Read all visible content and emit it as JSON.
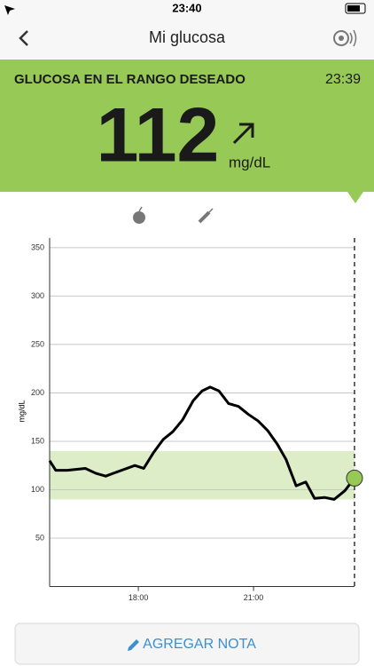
{
  "status_bar": {
    "time": "23:40"
  },
  "nav": {
    "title": "Mi glucosa"
  },
  "banner": {
    "status": "GLUCOSA EN EL RANGO DESEADO",
    "time": "23:39",
    "value": "112",
    "unit": "mg/dL"
  },
  "chart_data": {
    "type": "line",
    "ylabel": "mg/dL",
    "x": [
      15.69,
      15.85,
      16.15,
      16.62,
      16.89,
      17.15,
      17.42,
      17.91,
      18.14,
      18.39,
      18.65,
      18.9,
      19.15,
      19.43,
      19.66,
      19.87,
      20.1,
      20.35,
      20.61,
      20.86,
      21.12,
      21.37,
      21.62,
      21.85,
      22.11,
      22.36,
      22.59,
      22.85,
      23.1,
      23.38,
      23.63
    ],
    "series": [
      {
        "color": "#000000",
        "values": [
          130,
          120,
          120,
          122,
          117,
          114,
          118,
          125,
          122,
          138,
          152,
          160,
          172,
          192,
          202,
          206,
          202,
          189,
          186,
          178,
          171,
          161,
          147,
          131,
          104,
          108,
          91,
          92,
          90,
          99,
          112
        ]
      }
    ],
    "target_range": [
      90,
      140
    ],
    "target_color": "#dcedc8",
    "marker_color": "#97c957",
    "xlim": [
      15.69,
      23.63
    ],
    "xticks": [
      {
        "value": 18,
        "label": "18:00"
      },
      {
        "value": 21,
        "label": "21:00"
      }
    ],
    "ylim": [
      0,
      360
    ],
    "yticks": [
      50,
      100,
      150,
      200,
      250,
      300,
      350
    ],
    "grid": true
  },
  "button": {
    "label": "AGREGAR NOTA"
  }
}
